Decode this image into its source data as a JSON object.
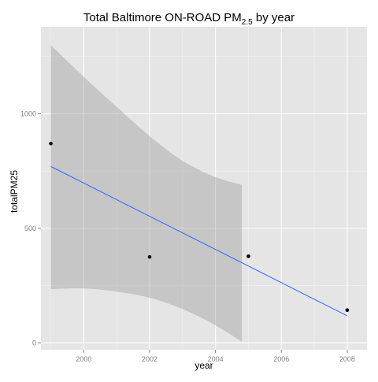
{
  "chart_data": {
    "type": "scatter",
    "title_main": "Total Baltimore ON-ROAD PM",
    "title_sub": "2.5",
    "title_tail": " by year",
    "xlabel": "year",
    "ylabel": "totalPM25",
    "xlim": [
      1998.7,
      2008.6
    ],
    "ylim": [
      -30,
      1380
    ],
    "xticks": [
      2000,
      2002,
      2004,
      2006,
      2008
    ],
    "yticks": [
      0,
      500,
      1000
    ],
    "points": [
      {
        "x": 1999,
        "y": 870
      },
      {
        "x": 2002,
        "y": 375
      },
      {
        "x": 2005,
        "y": 378
      },
      {
        "x": 2008,
        "y": 143
      }
    ],
    "fit_line": {
      "x": [
        1999,
        2008
      ],
      "y": [
        770,
        118
      ],
      "color": "#3366FF"
    },
    "confidence_band": {
      "upper": [
        [
          1999,
          1300
        ],
        [
          2000,
          1160
        ],
        [
          2001,
          1030
        ],
        [
          2002,
          900
        ],
        [
          2003,
          790
        ],
        [
          2004,
          720
        ],
        [
          2004.8,
          690
        ]
      ],
      "lower": [
        [
          1999,
          235
        ],
        [
          2000,
          240
        ],
        [
          2001,
          225
        ],
        [
          2002,
          200
        ],
        [
          2003,
          150
        ],
        [
          2004,
          80
        ],
        [
          2004.8,
          5
        ]
      ]
    },
    "grid": true,
    "panel_color": "#E5E5E5",
    "band_color": "#999999",
    "point_color": "#000000"
  }
}
